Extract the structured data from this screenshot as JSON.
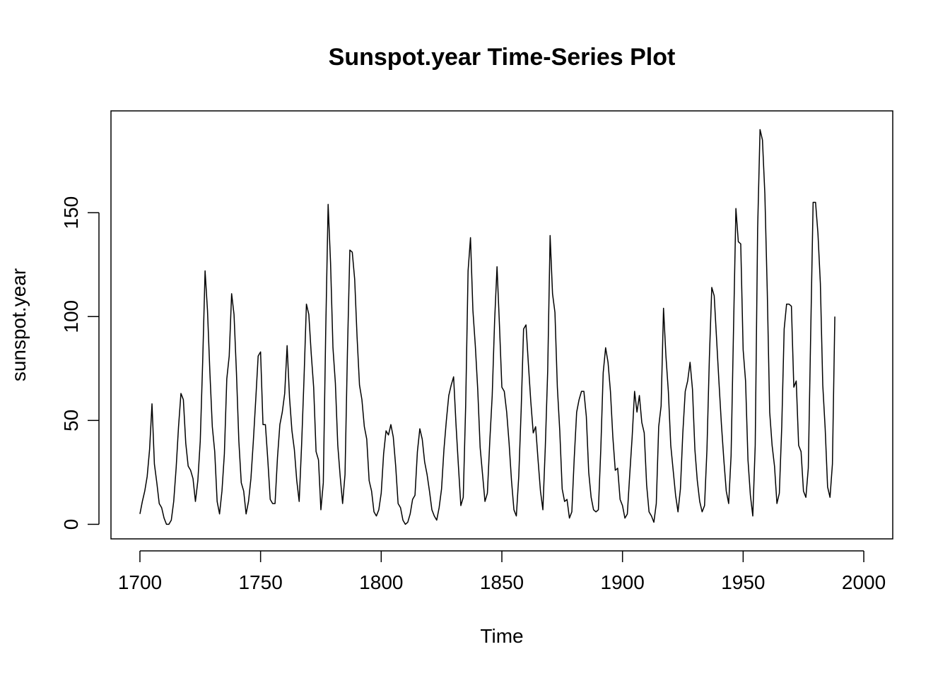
{
  "chart_data": {
    "type": "line",
    "title": "Sunspot.year Time-Series Plot",
    "xlabel": "Time",
    "ylabel": "sunspot.year",
    "xlim": [
      1688,
      2012
    ],
    "ylim": [
      -7,
      199
    ],
    "x_ticks": [
      1700,
      1750,
      1800,
      1850,
      1900,
      1950,
      2000
    ],
    "y_ticks": [
      0,
      50,
      100,
      150
    ],
    "grid": false,
    "legend": "none",
    "line_color": "#000000",
    "x_start": 1700,
    "x_end": 1988,
    "series": [
      {
        "values": [
          5,
          11,
          16,
          23,
          36,
          58,
          29,
          20,
          10,
          8,
          3,
          0,
          0,
          2,
          11,
          27,
          47,
          63,
          60,
          39,
          28,
          26,
          22,
          11,
          21,
          40,
          78,
          122,
          103,
          73,
          47,
          35,
          11,
          5,
          16,
          34,
          70,
          81,
          111,
          101,
          73,
          40,
          20,
          16,
          5,
          11,
          22,
          40,
          60,
          81,
          83,
          48,
          48,
          31,
          12,
          10,
          10,
          32,
          48,
          54,
          63,
          86,
          61,
          45,
          36,
          21,
          11,
          38,
          70,
          106,
          101,
          82,
          66,
          35,
          31,
          7,
          20,
          93,
          154,
          126,
          85,
          68,
          38,
          23,
          10,
          24,
          83,
          132,
          131,
          118,
          90,
          67,
          60,
          47,
          41,
          21,
          16,
          6,
          4,
          7,
          15,
          34,
          45,
          43,
          48,
          42,
          28,
          10,
          8,
          2,
          0,
          1,
          5,
          12,
          14,
          35,
          46,
          41,
          30,
          24,
          16,
          7,
          4,
          2,
          8,
          17,
          36,
          50,
          62,
          67,
          71,
          48,
          28,
          9,
          13,
          57,
          122,
          138,
          103,
          86,
          65,
          37,
          24,
          11,
          15,
          40,
          62,
          98,
          124,
          96,
          66,
          64,
          54,
          39,
          21,
          7,
          4,
          23,
          55,
          94,
          96,
          77,
          59,
          44,
          47,
          31,
          16,
          7,
          37,
          74,
          139,
          111,
          102,
          66,
          45,
          17,
          11,
          12,
          3,
          6,
          32,
          54,
          60,
          64,
          64,
          52,
          25,
          13,
          7,
          6,
          7,
          36,
          73,
          85,
          78,
          64,
          42,
          26,
          27,
          12,
          9,
          3,
          5,
          24,
          42,
          64,
          54,
          62,
          49,
          44,
          19,
          6,
          4,
          1,
          10,
          47,
          57,
          104,
          81,
          64,
          38,
          26,
          14,
          6,
          17,
          44,
          64,
          69,
          78,
          65,
          36,
          21,
          11,
          6,
          9,
          36,
          80,
          114,
          110,
          89,
          68,
          48,
          31,
          16,
          10,
          33,
          93,
          152,
          136,
          135,
          84,
          69,
          31,
          14,
          4,
          38,
          142,
          190,
          185,
          159,
          112,
          54,
          38,
          28,
          10,
          15,
          47,
          94,
          106,
          106,
          105,
          66,
          69,
          38,
          35,
          16,
          13,
          27,
          92,
          155,
          155,
          140,
          116,
          67,
          46,
          18,
          13,
          29,
          100
        ]
      }
    ]
  }
}
